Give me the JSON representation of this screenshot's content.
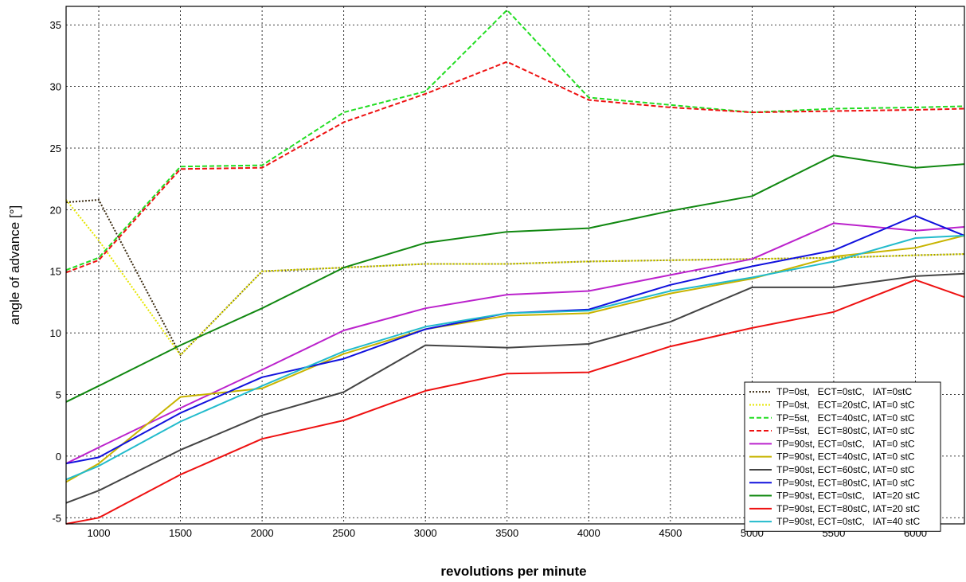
{
  "chart_data": {
    "type": "line",
    "xlabel": "revolutions per minute",
    "ylabel": "angle of advance [°]",
    "xlim": [
      800,
      6300
    ],
    "ylim": [
      -5.5,
      36.5
    ],
    "xticks": [
      1000,
      1500,
      2000,
      2500,
      3000,
      3500,
      4000,
      4500,
      5000,
      5500,
      6000
    ],
    "yticks": [
      -5,
      0,
      5,
      10,
      15,
      20,
      25,
      30,
      35
    ],
    "grid": true,
    "legend_position": "bottom-right",
    "x": [
      800,
      1000,
      1500,
      2000,
      2500,
      3000,
      3500,
      4000,
      4500,
      5000,
      5500,
      6000,
      6300
    ],
    "series": [
      {
        "name": "TP=0st,   ECT=0stC,   IAT=0stC",
        "color": "#3a2a10",
        "dash": "dot",
        "values": [
          20.6,
          20.8,
          8.2,
          15.0,
          15.3,
          15.6,
          15.6,
          15.8,
          15.9,
          16.0,
          16.1,
          16.3,
          16.4
        ]
      },
      {
        "name": "TP=0st,   ECT=20stC, IAT=0 stC",
        "color": "#e6e600",
        "dash": "dot",
        "values": [
          20.8,
          17.5,
          8.2,
          15.0,
          15.3,
          15.6,
          15.6,
          15.8,
          15.9,
          16.0,
          16.1,
          16.3,
          16.4
        ]
      },
      {
        "name": "TP=5st,   ECT=40stC, IAT=0 stC",
        "color": "#22dd22",
        "dash": "dash",
        "values": [
          15.1,
          16.1,
          23.5,
          23.6,
          27.9,
          29.6,
          36.2,
          29.1,
          28.5,
          27.9,
          28.2,
          28.3,
          28.4
        ]
      },
      {
        "name": "TP=5st,   ECT=80stC, IAT=0 stC",
        "color": "#ee1111",
        "dash": "dash",
        "values": [
          14.9,
          15.9,
          23.3,
          23.4,
          27.1,
          29.4,
          32.0,
          28.9,
          28.3,
          27.9,
          28.0,
          28.1,
          28.2
        ]
      },
      {
        "name": "TP=90st, ECT=0stC,   IAT=0 stC",
        "color": "#bb22cc",
        "dash": "solid",
        "values": [
          -0.6,
          0.7,
          3.9,
          7.0,
          10.2,
          12.0,
          13.1,
          13.4,
          14.7,
          16.0,
          18.9,
          18.3,
          18.6
        ]
      },
      {
        "name": "TP=90st, ECT=40stC, IAT=0 stC",
        "color": "#c8b400",
        "dash": "solid",
        "values": [
          -2.1,
          -0.6,
          4.8,
          5.5,
          8.3,
          10.3,
          11.4,
          11.6,
          13.2,
          14.4,
          16.2,
          16.9,
          17.9
        ]
      },
      {
        "name": "TP=90st, ECT=60stC, IAT=0 stC",
        "color": "#444444",
        "dash": "solid",
        "values": [
          -3.8,
          -2.8,
          0.5,
          3.3,
          5.2,
          9.0,
          8.8,
          9.1,
          10.9,
          13.7,
          13.7,
          14.6,
          14.8
        ]
      },
      {
        "name": "TP=90st, ECT=80stC, IAT=0 stC",
        "color": "#1111dd",
        "dash": "solid",
        "values": [
          -0.6,
          -0.1,
          3.5,
          6.4,
          7.9,
          10.3,
          11.6,
          11.9,
          13.9,
          15.4,
          16.7,
          19.5,
          17.9
        ]
      },
      {
        "name": "TP=90st, ECT=0stC,   IAT=20 stC",
        "color": "#118811",
        "dash": "solid",
        "values": [
          4.4,
          5.7,
          9.0,
          12.0,
          15.3,
          17.3,
          18.2,
          18.5,
          19.9,
          21.1,
          24.4,
          23.4,
          23.7
        ]
      },
      {
        "name": "TP=90st, ECT=80stC, IAT=20 stC",
        "color": "#ee1111",
        "dash": "solid",
        "values": [
          -5.5,
          -5.0,
          -1.5,
          1.4,
          2.9,
          5.3,
          6.7,
          6.8,
          8.9,
          10.4,
          11.7,
          14.3,
          12.9
        ]
      },
      {
        "name": "TP=90st, ECT=0stC,   IAT=40 stC",
        "color": "#22bbcc",
        "dash": "solid",
        "values": [
          -1.9,
          -0.8,
          2.8,
          5.7,
          8.5,
          10.5,
          11.6,
          11.8,
          13.4,
          14.5,
          15.8,
          17.7,
          17.9
        ]
      }
    ]
  }
}
